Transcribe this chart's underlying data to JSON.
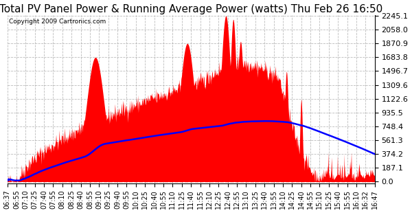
{
  "title": "Total PV Panel Power & Running Average Power (watts) Thu Feb 26 16:50",
  "copyright": "Copyright 2009 Cartronics.com",
  "bg_color": "#ffffff",
  "plot_bg_color": "#ffffff",
  "grid_color": "#aaaaaa",
  "y_ticks": [
    0.0,
    187.1,
    374.2,
    561.3,
    748.4,
    935.5,
    1122.6,
    1309.6,
    1496.7,
    1683.8,
    1870.9,
    2058.0,
    2245.1
  ],
  "y_max": 2245.1,
  "x_labels": [
    "06:37",
    "06:55",
    "07:10",
    "07:25",
    "07:40",
    "07:55",
    "08:10",
    "08:25",
    "08:40",
    "08:55",
    "09:10",
    "09:25",
    "09:40",
    "09:55",
    "10:10",
    "10:25",
    "10:40",
    "10:55",
    "11:10",
    "11:25",
    "11:40",
    "11:55",
    "12:10",
    "12:25",
    "12:40",
    "12:55",
    "13:10",
    "13:25",
    "13:40",
    "13:55",
    "14:10",
    "14:25",
    "14:40",
    "14:55",
    "15:10",
    "15:25",
    "15:40",
    "15:55",
    "16:10",
    "16:32",
    "16:47"
  ],
  "title_fontsize": 11,
  "ylabel_fontsize": 8,
  "xlabel_fontsize": 7
}
